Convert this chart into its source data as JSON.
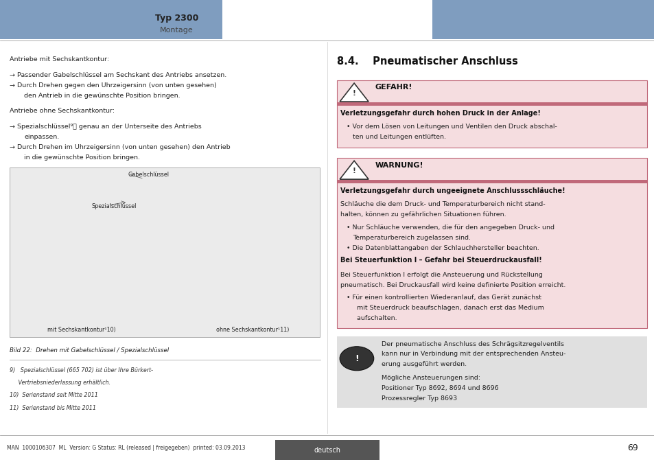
{
  "page_bg": "#ffffff",
  "header_bar_color": "#7f9dbf",
  "header_left_text": "Typ 2300",
  "header_left_sub": "Montage",
  "footer_bg": "#555555",
  "footer_text": "deutsch",
  "footer_page": "69",
  "footer_note": "MAN  1000106307  ML  Version: G Status: RL (released | freigegeben)  printed: 03.09.2013",
  "divider_color": "#aaaaaa",
  "section_title": "8.4.    Pneumatischer Anschluss",
  "danger_label": "GEFAHR!",
  "danger_bar_color": "#c0697a",
  "danger_title": "Verletzungsgefahr durch hohen Druck in der Anlage!",
  "warning_label": "WARNUNG!",
  "warning_bar_color": "#c0697a",
  "warning_title": "Verletzungsgefahr durch ungeeignete Anschlussschläuche!",
  "warning_body_line1": "Schläuche die dem Druck- und Temperaturbereich nicht stand-",
  "warning_body_line2": "halten, können zu gefährlichen Situationen führen.",
  "warning_bullets": [
    "Nur Schläuche verwenden, die für den angegeben Druck- und\nTemperaturbereich zugelassen sind.",
    "Die Datenblattangaben der Schlauchhersteller beachten."
  ],
  "steuerfunktion_title": "Bei Steuerfunktion I – Gefahr bei Steuerdruckausfall!",
  "steuerfunktion_body_line1": "Bei Steuerfunktion I erfolgt die Ansteuerung und Rückstellung",
  "steuerfunktion_body_line2": "pneumatisch. Bei Druckausfall wird keine definierte Position erreicht.",
  "steuerfunktion_bullet_lines": [
    "Für einen kontrollierten Wiederanlauf, das Gerät zunächst",
    "mit Steuerdruck beaufschlagen, danach erst das Medium",
    "aufschalten."
  ],
  "note_bg": "#e0e0e0",
  "note_text1_lines": [
    "Der pneumatische Anschluss des Schrägsitzregelventils",
    "kann nur in Verbindung mit der entsprechenden Ansteu-",
    "erung ausgeführt werden."
  ],
  "note_text2_lines": [
    "Mögliche Ansteuerungen sind:",
    "Positioner Typ 8692, 8694 und 8696",
    "Prozessregler Typ 8693"
  ],
  "left_intro": "Antriebe mit Sechskantkontur:",
  "left_intro2": "Antriebe ohne Sechskantkontur:",
  "fig_caption": "Bild 22:  Drehen mit Gabelschlüssel / Spezialschlüssel",
  "fig_label1": "Gabelschlüssel",
  "fig_label2": "Spezialschlüssel",
  "fig_label3": "mit Sechskantkontur¹10)",
  "fig_label4": "ohne Sechskantkontur¹11)",
  "footnotes": [
    "9)   Spezialschlüssel (665 702) ist über Ihre Bürkert-",
    "     Vertriebsniederlassung erhältlich.",
    "10)  Serienstand seit Mitte 2011",
    "11)  Serienstand bis Mitte 2011"
  ],
  "danger_box_bg": "#f5dde0",
  "warning_box_bg": "#f5dde0"
}
